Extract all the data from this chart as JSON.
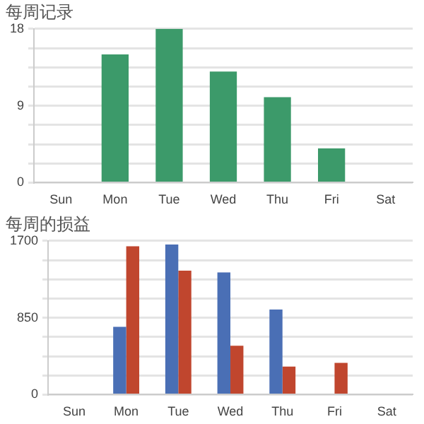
{
  "chart_data": [
    {
      "type": "bar",
      "title": "每周记录",
      "categories": [
        "Sun",
        "Mon",
        "Tue",
        "Wed",
        "Thu",
        "Fri",
        "Sat"
      ],
      "series": [
        {
          "color": "#3c9a6a",
          "values": [
            0,
            15,
            18,
            13,
            10,
            4,
            0
          ]
        }
      ],
      "ylim": [
        0,
        18
      ],
      "yticks": [
        0,
        {
          "value": 2.25,
          "label": null
        },
        {
          "value": 4.5,
          "label": null
        },
        {
          "value": 6.75,
          "label": null
        },
        9,
        {
          "value": 11.25,
          "label": null
        },
        {
          "value": 13.5,
          "label": null
        },
        {
          "value": 15.75,
          "label": null
        },
        18
      ],
      "grid": "y",
      "legend": false
    },
    {
      "type": "bar",
      "title": "每周的损益",
      "categories": [
        "Sun",
        "Mon",
        "Tue",
        "Wed",
        "Thu",
        "Fri",
        "Sat"
      ],
      "series": [
        {
          "color": "#4a6fb5",
          "values": [
            0,
            750,
            1660,
            1350,
            940,
            0,
            0
          ]
        },
        {
          "color": "#c0462e",
          "values": [
            0,
            1640,
            1370,
            540,
            310,
            350,
            0
          ]
        }
      ],
      "ylim": [
        0,
        1700
      ],
      "yticks": [
        0,
        {
          "value": 212.5,
          "label": null
        },
        {
          "value": 425,
          "label": null
        },
        {
          "value": 637.5,
          "label": null
        },
        850,
        {
          "value": 1062.5,
          "label": null
        },
        {
          "value": 1275,
          "label": null
        },
        {
          "value": 1487.5,
          "label": null
        },
        1700
      ],
      "grid": "y",
      "legend": false
    }
  ]
}
